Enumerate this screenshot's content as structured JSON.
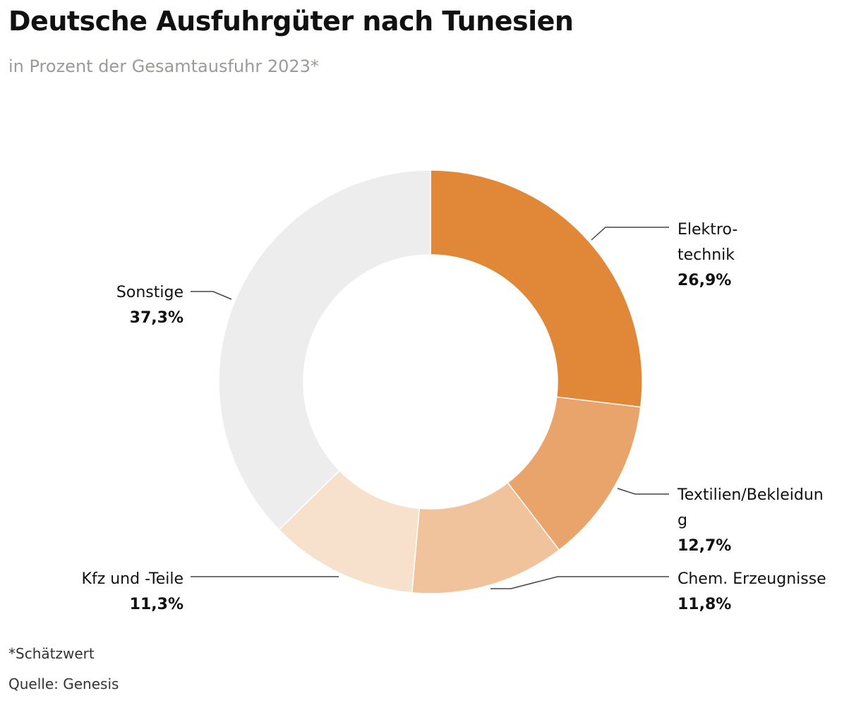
{
  "header": {
    "title": "Deutsche Ausfuhrgüter nach Tunesien",
    "subtitle": "in Prozent der Gesamtausfuhr 2023*"
  },
  "footer": {
    "footnote": "*Schätzwert",
    "source": "Quelle: Genesis"
  },
  "chart_data": {
    "type": "pie",
    "variant": "donut",
    "title": "Deutsche Ausfuhrgüter nach Tunesien",
    "subtitle": "in Prozent der Gesamtausfuhr 2023*",
    "unit": "%",
    "slices": [
      {
        "label_lines": [
          "Elektro-",
          "technik"
        ],
        "value": 26.9,
        "value_label": "26,9%",
        "color": "#e08838"
      },
      {
        "label_lines": [
          "Textilien/Bekleidun",
          "g"
        ],
        "value": 12.7,
        "value_label": "12,7%",
        "color": "#e8a46b"
      },
      {
        "label_lines": [
          "Chem. Erzeugnisse"
        ],
        "value": 11.8,
        "value_label": "11,8%",
        "color": "#f0c39c"
      },
      {
        "label_lines": [
          "Kfz und -Teile"
        ],
        "value": 11.3,
        "value_label": "11,3%",
        "color": "#f7e0cc"
      },
      {
        "label_lines": [
          "Sonstige"
        ],
        "value": 37.3,
        "value_label": "37,3%",
        "color": "#ededed"
      }
    ]
  }
}
